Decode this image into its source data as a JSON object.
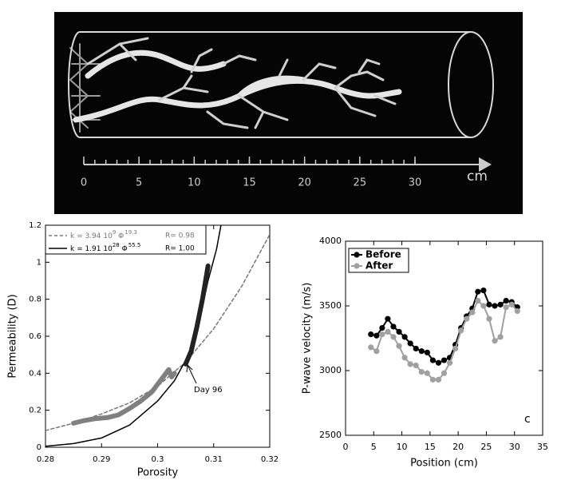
{
  "ct_image": {
    "scale_ticks": [
      0,
      5,
      10,
      15,
      20,
      25,
      30
    ],
    "unit": "cm"
  },
  "chart_data": [
    {
      "type": "line",
      "xlabel": "Porosity",
      "ylabel": "Permeability (D)",
      "xlim": [
        0.28,
        0.32
      ],
      "ylim": [
        0,
        1.2
      ],
      "xticks": [
        0.28,
        0.29,
        0.3,
        0.31,
        0.32
      ],
      "yticks": [
        0,
        0.2,
        0.4,
        0.6,
        0.8,
        1,
        1.2
      ],
      "annotation": "Day 96",
      "series": [
        {
          "style": "dashed",
          "color": "#777777",
          "legend": {
            "formula": [
              "k = 3.94 10",
              "9",
              " Φ",
              "19.3"
            ],
            "fit": "R= 0.98"
          },
          "x": [
            0.28,
            0.285,
            0.29,
            0.295,
            0.3,
            0.305,
            0.31,
            0.315,
            0.32
          ],
          "values": [
            0.09,
            0.13,
            0.18,
            0.24,
            0.33,
            0.46,
            0.64,
            0.87,
            1.15
          ]
        },
        {
          "style": "solid",
          "color": "#000000",
          "legend": {
            "formula": [
              "k = 1.91 10",
              "28",
              " Φ",
              "55.5"
            ],
            "fit": "R= 1.00"
          },
          "x": [
            0.28,
            0.285,
            0.29,
            0.295,
            0.3,
            0.303,
            0.305,
            0.307,
            0.309,
            0.3105,
            0.3113
          ],
          "values": [
            0.005,
            0.02,
            0.05,
            0.12,
            0.25,
            0.36,
            0.47,
            0.62,
            0.9,
            1.07,
            1.2
          ]
        },
        {
          "style": "thick",
          "color": "#808080",
          "x": [
            0.285,
            0.287,
            0.289,
            0.291,
            0.293,
            0.295,
            0.297,
            0.299,
            0.3,
            0.301,
            0.302,
            0.3025,
            0.303
          ],
          "values": [
            0.13,
            0.145,
            0.155,
            0.16,
            0.175,
            0.21,
            0.25,
            0.3,
            0.34,
            0.38,
            0.42,
            0.38,
            0.4
          ]
        },
        {
          "style": "thick",
          "color": "#222222",
          "x": [
            0.305,
            0.306,
            0.307,
            0.308,
            0.309
          ],
          "values": [
            0.45,
            0.52,
            0.65,
            0.8,
            0.98
          ]
        }
      ]
    },
    {
      "type": "line",
      "xlabel": "Position (cm)",
      "ylabel": "P-wave velocity (m/s)",
      "xlim": [
        0,
        35
      ],
      "ylim": [
        2500,
        4000
      ],
      "xticks": [
        0,
        5,
        10,
        15,
        20,
        25,
        30,
        35
      ],
      "yticks": [
        2500,
        3000,
        3500,
        4000
      ],
      "annotation": "c",
      "series": [
        {
          "name": "Before",
          "color": "#000000",
          "markers": true,
          "x": [
            4.5,
            5.5,
            6.5,
            7.5,
            8.5,
            9.5,
            10.5,
            11.5,
            12.5,
            13.5,
            14.5,
            15.5,
            16.5,
            17.5,
            18.5,
            19.5,
            20.5,
            21.5,
            22.5,
            23.5,
            24.5,
            25.5,
            26.5,
            27.5,
            28.5,
            29.5,
            30.5
          ],
          "values": [
            3280,
            3270,
            3330,
            3400,
            3340,
            3300,
            3260,
            3210,
            3170,
            3150,
            3140,
            3080,
            3060,
            3080,
            3100,
            3200,
            3330,
            3420,
            3480,
            3610,
            3620,
            3510,
            3500,
            3510,
            3540,
            3530,
            3490
          ]
        },
        {
          "name": "After",
          "color": "#a0a0a0",
          "markers": true,
          "x": [
            4.5,
            5.5,
            6.5,
            7.5,
            8.5,
            9.5,
            10.5,
            11.5,
            12.5,
            13.5,
            14.5,
            15.5,
            16.5,
            17.5,
            18.5,
            19.5,
            20.5,
            21.5,
            22.5,
            23.5,
            24.5,
            25.5,
            26.5,
            27.5,
            28.5,
            29.5,
            30.5
          ],
          "values": [
            3180,
            3150,
            3280,
            3300,
            3260,
            3190,
            3100,
            3050,
            3040,
            2990,
            2980,
            2930,
            2930,
            2980,
            3060,
            3170,
            3310,
            3400,
            3450,
            3540,
            3500,
            3400,
            3230,
            3260,
            3490,
            3510,
            3460
          ]
        }
      ]
    }
  ]
}
